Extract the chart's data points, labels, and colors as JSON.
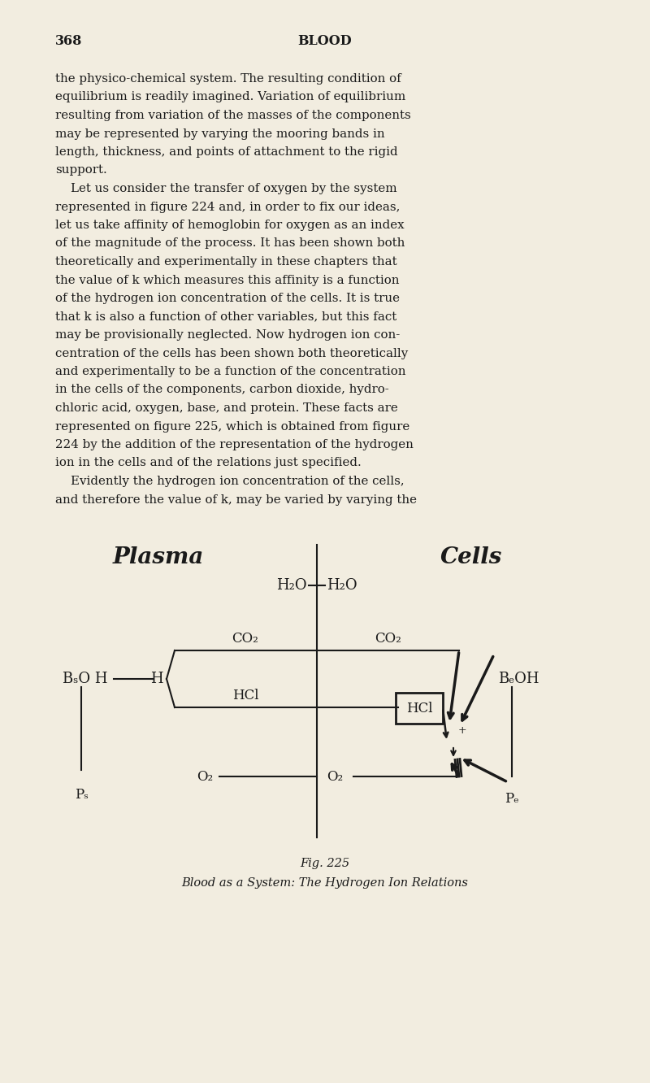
{
  "bg_color": "#f2ede0",
  "text_color": "#1a1a1a",
  "page_number": "368",
  "page_header": "BLOOD",
  "body_text_top": [
    "the physico-chemical system. The resulting condition of",
    "equilibrium is readily imagined. Variation of equilibrium",
    "resulting from variation of the masses of the components",
    "may be represented by varying the mooring bands in",
    "length, thickness, and points of attachment to the rigid",
    "support.",
    "    Let us consider the transfer of oxygen by the system",
    "represented in figure 224 and, in order to fix our ideas,",
    "let us take affinity of hemoglobin for oxygen as an index",
    "of the magnitude of the process. It has been shown both",
    "theoretically and experimentally in these chapters that",
    "the value of k which measures this affinity is a function",
    "of the hydrogen ion concentration of the cells. It is true",
    "that k is also a function of other variables, but this fact",
    "may be provisionally neglected. Now hydrogen ion con-",
    "centration of the cells has been shown both theoretically",
    "and experimentally to be a function of the concentration",
    "in the cells of the components, carbon dioxide, hydro-",
    "chloric acid, oxygen, base, and protein. These facts are",
    "represented on figure 225, which is obtained from figure",
    "224 by the addition of the representation of the hydrogen",
    "ion in the cells and of the relations just specified.",
    "    Evidently the hydrogen ion concentration of the cells,",
    "and therefore the value of k, may be varied by varying the"
  ],
  "fig_caption_1": "Fig. 225",
  "fig_caption_2": "Blood as a System: The Hydrogen Ion Relations",
  "plasma_label": "Plasma",
  "cells_label": "Cells"
}
